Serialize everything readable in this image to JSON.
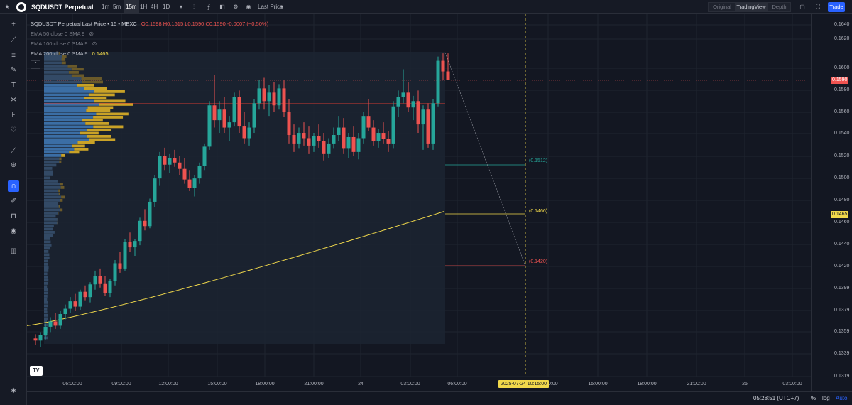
{
  "header": {
    "symbol": "SQDUSDT Perpetual",
    "timeframes": [
      {
        "label": "1m",
        "active": false
      },
      {
        "label": "5m",
        "active": false
      },
      {
        "label": "15m",
        "active": true
      },
      {
        "label": "1H",
        "active": false
      },
      {
        "label": "4H",
        "active": false
      },
      {
        "label": "1D",
        "active": false
      }
    ],
    "price_type": "Last Price",
    "views": [
      "Original",
      "TradingView",
      "Depth"
    ],
    "active_view": "TradingView",
    "trade_label": "Trade"
  },
  "legend": {
    "title": "SQDUSDT Perpetual Last Price • 15 • MEXC",
    "o_label": "O",
    "o": "0.1598",
    "h_label": "H",
    "h": "0.1615",
    "l_label": "L",
    "l": "0.1590",
    "c_label": "C",
    "c": "0.1590",
    "change": "-0.0007 (−0.50%)",
    "ema50": "EMA 50 close 0 SMA 9",
    "ema100": "EMA 100 close 0 SMA 9",
    "ema200": "EMA 200 close 0 SMA 9",
    "ema200_value": "0.1465"
  },
  "price_axis": {
    "ticks": [
      "0.1640",
      "0.1620",
      "0.1600",
      "0.1580",
      "0.1560",
      "0.1540",
      "0.1520",
      "0.1500",
      "0.1480",
      "0.1460",
      "0.1440",
      "0.1420",
      "0.1399",
      "0.1379",
      "0.1359",
      "0.1339",
      "0.1319"
    ],
    "last_price": "0.1590",
    "ema_price": "0.1465"
  },
  "time_axis": {
    "ticks": [
      "06:00:00",
      "09:00:00",
      "12:00:00",
      "15:00:00",
      "18:00:00",
      "21:00:00",
      "24",
      "03:00:00",
      "06:00:00",
      "12:00:00",
      "15:00:00",
      "18:00:00",
      "21:00:00",
      "25",
      "03:00:00"
    ],
    "crosshair": "2025-07-24   10:15:00"
  },
  "annotations": {
    "level_1": "(0.1512)",
    "level_2": "(0.1466)",
    "level_3": "(0.1420)"
  },
  "bottom": {
    "clock": "05:28:51 (UTC+7)",
    "percent": "%",
    "log": "log",
    "auto": "Auto"
  },
  "colors": {
    "bull": "#26a69a",
    "bear": "#ef5350",
    "ema": "#f0d84b",
    "vp_blue": "#3b6ea5",
    "vp_gold": "#c9a227",
    "accent": "#2962ff"
  },
  "chart_data": {
    "type": "candlestick",
    "y_range": [
      0.131,
      0.1652
    ],
    "candles": [
      [
        0.1346,
        0.135,
        0.134,
        0.1344
      ],
      [
        0.1344,
        0.1352,
        0.1338,
        0.1349
      ],
      [
        0.1349,
        0.136,
        0.1345,
        0.1357
      ],
      [
        0.1357,
        0.1366,
        0.1352,
        0.1362
      ],
      [
        0.1362,
        0.137,
        0.1355,
        0.1358
      ],
      [
        0.1358,
        0.1372,
        0.1355,
        0.1369
      ],
      [
        0.1369,
        0.1378,
        0.1364,
        0.1374
      ],
      [
        0.1374,
        0.1385,
        0.137,
        0.1381
      ],
      [
        0.1381,
        0.1388,
        0.1372,
        0.1376
      ],
      [
        0.1376,
        0.1392,
        0.1373,
        0.139
      ],
      [
        0.139,
        0.1396,
        0.1382,
        0.1385
      ],
      [
        0.1385,
        0.1399,
        0.138,
        0.1397
      ],
      [
        0.1397,
        0.141,
        0.1392,
        0.1405
      ],
      [
        0.1405,
        0.1412,
        0.1394,
        0.1398
      ],
      [
        0.1398,
        0.1405,
        0.1386,
        0.1389
      ],
      [
        0.1389,
        0.1402,
        0.1385,
        0.14
      ],
      [
        0.14,
        0.142,
        0.1396,
        0.1417
      ],
      [
        0.1417,
        0.1428,
        0.1408,
        0.1412
      ],
      [
        0.1412,
        0.144,
        0.141,
        0.1437
      ],
      [
        0.1437,
        0.1446,
        0.1428,
        0.1432
      ],
      [
        0.1432,
        0.144,
        0.1424,
        0.1438
      ],
      [
        0.1438,
        0.146,
        0.1434,
        0.1457
      ],
      [
        0.1457,
        0.1468,
        0.1448,
        0.1452
      ],
      [
        0.1452,
        0.1478,
        0.145,
        0.1475
      ],
      [
        0.1475,
        0.15,
        0.147,
        0.1497
      ],
      [
        0.1497,
        0.1522,
        0.149,
        0.1518
      ],
      [
        0.1518,
        0.1526,
        0.1505,
        0.151
      ],
      [
        0.151,
        0.152,
        0.1502,
        0.1516
      ],
      [
        0.1516,
        0.1524,
        0.1508,
        0.1512
      ],
      [
        0.1512,
        0.1518,
        0.15,
        0.1506
      ],
      [
        0.1506,
        0.1516,
        0.1492,
        0.1496
      ],
      [
        0.1496,
        0.1505,
        0.1485,
        0.1488
      ],
      [
        0.1488,
        0.15,
        0.148,
        0.1497
      ],
      [
        0.1497,
        0.1512,
        0.1492,
        0.1509
      ],
      [
        0.1509,
        0.153,
        0.1505,
        0.1527
      ],
      [
        0.1527,
        0.157,
        0.1524,
        0.1566
      ],
      [
        0.1566,
        0.1595,
        0.1545,
        0.1552
      ],
      [
        0.1552,
        0.157,
        0.154,
        0.1562
      ],
      [
        0.1562,
        0.1574,
        0.154,
        0.1545
      ],
      [
        0.1545,
        0.1556,
        0.1532,
        0.155
      ],
      [
        0.155,
        0.1578,
        0.1546,
        0.1574
      ],
      [
        0.1574,
        0.158,
        0.154,
        0.1546
      ],
      [
        0.1546,
        0.156,
        0.153,
        0.1535
      ],
      [
        0.1535,
        0.155,
        0.1528,
        0.1545
      ],
      [
        0.1545,
        0.1572,
        0.154,
        0.1568
      ],
      [
        0.1568,
        0.159,
        0.1562,
        0.1582
      ],
      [
        0.1582,
        0.1592,
        0.1562,
        0.157
      ],
      [
        0.157,
        0.1585,
        0.1556,
        0.1578
      ],
      [
        0.1578,
        0.1588,
        0.156,
        0.1566
      ],
      [
        0.1566,
        0.1586,
        0.1562,
        0.1582
      ],
      [
        0.1582,
        0.159,
        0.1555,
        0.156
      ],
      [
        0.156,
        0.1572,
        0.153,
        0.1538
      ],
      [
        0.1538,
        0.1548,
        0.1522,
        0.153
      ],
      [
        0.153,
        0.1545,
        0.1525,
        0.154
      ],
      [
        0.154,
        0.155,
        0.1528,
        0.1535
      ],
      [
        0.1535,
        0.1546,
        0.152,
        0.1528
      ],
      [
        0.1528,
        0.154,
        0.1522,
        0.1537
      ],
      [
        0.1537,
        0.1548,
        0.1526,
        0.1532
      ],
      [
        0.1532,
        0.154,
        0.1514,
        0.152
      ],
      [
        0.152,
        0.1535,
        0.1516,
        0.153
      ],
      [
        0.153,
        0.1545,
        0.1525,
        0.1538
      ],
      [
        0.1538,
        0.1556,
        0.1532,
        0.1545
      ],
      [
        0.1545,
        0.1554,
        0.152,
        0.1525
      ],
      [
        0.1525,
        0.154,
        0.1516,
        0.1536
      ],
      [
        0.1536,
        0.1546,
        0.1518,
        0.1522
      ],
      [
        0.1522,
        0.154,
        0.1515,
        0.1535
      ],
      [
        0.1535,
        0.156,
        0.153,
        0.1556
      ],
      [
        0.1556,
        0.1572,
        0.1542,
        0.1545
      ],
      [
        0.1545,
        0.1552,
        0.1528,
        0.1532
      ],
      [
        0.1532,
        0.1544,
        0.1526,
        0.154
      ],
      [
        0.154,
        0.155,
        0.153,
        0.1534
      ],
      [
        0.1534,
        0.1542,
        0.1522,
        0.153
      ],
      [
        0.153,
        0.157,
        0.1525,
        0.1565
      ],
      [
        0.1565,
        0.158,
        0.1555,
        0.1574
      ],
      [
        0.1574,
        0.16,
        0.1568,
        0.1578
      ],
      [
        0.1578,
        0.1588,
        0.156,
        0.1564
      ],
      [
        0.1564,
        0.1575,
        0.1552,
        0.157
      ],
      [
        0.157,
        0.158,
        0.154,
        0.1548
      ],
      [
        0.1548,
        0.1566,
        0.1524,
        0.1562
      ],
      [
        0.1562,
        0.1568,
        0.1526,
        0.153
      ],
      [
        0.153,
        0.1572,
        0.1524,
        0.1568
      ],
      [
        0.1568,
        0.1612,
        0.1565,
        0.1608
      ],
      [
        0.1608,
        0.1615,
        0.159,
        0.1598
      ],
      [
        0.1598,
        0.1615,
        0.159,
        0.159
      ]
    ]
  }
}
